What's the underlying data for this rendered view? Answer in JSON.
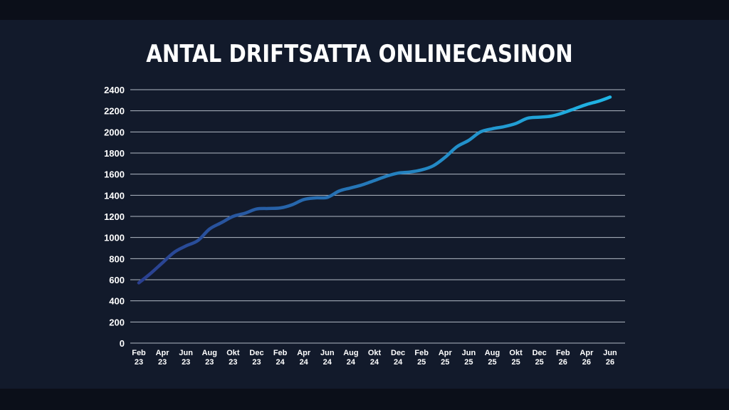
{
  "colors": {
    "background": "#121a2b",
    "gridline": "#cfd6e2",
    "line_start": "#2a3f8f",
    "line_end": "#1fb6e6"
  },
  "chart_data": {
    "type": "line",
    "title": "ANTAL DRIFTSATTA ONLINECASINON",
    "xlabel": "",
    "ylabel": "",
    "ylim": [
      0,
      2400
    ],
    "yticks": [
      0,
      200,
      400,
      600,
      800,
      1000,
      1200,
      1400,
      1600,
      1800,
      2000,
      2200,
      2400
    ],
    "grid": true,
    "legend": "none",
    "x_ticks": [
      [
        "Feb",
        "23"
      ],
      [
        "Apr",
        "23"
      ],
      [
        "Jun",
        "23"
      ],
      [
        "Aug",
        "23"
      ],
      [
        "Okt",
        "23"
      ],
      [
        "Dec",
        "23"
      ],
      [
        "Feb",
        "24"
      ],
      [
        "Apr",
        "24"
      ],
      [
        "Jun",
        "24"
      ],
      [
        "Aug",
        "24"
      ],
      [
        "Okt",
        "24"
      ],
      [
        "Dec",
        "24"
      ],
      [
        "Feb",
        "25"
      ],
      [
        "Apr",
        "25"
      ],
      [
        "Jun",
        "25"
      ],
      [
        "Aug",
        "25"
      ],
      [
        "Okt",
        "25"
      ],
      [
        "Dec",
        "25"
      ],
      [
        "Feb",
        "26"
      ],
      [
        "Apr",
        "26"
      ],
      [
        "Jun",
        "26"
      ]
    ],
    "x": [
      "Feb 23",
      "Mar 23",
      "Apr 23",
      "May 23",
      "Jun 23",
      "Jul 23",
      "Aug 23",
      "Sep 23",
      "Okt 23",
      "Nov 23",
      "Dec 23",
      "Jan 24",
      "Feb 24",
      "Mar 24",
      "Apr 24",
      "May 24",
      "Jun 24",
      "Jul 24",
      "Aug 24",
      "Sep 24",
      "Okt 24",
      "Nov 24",
      "Dec 24",
      "Jan 25",
      "Feb 25",
      "Mar 25",
      "Apr 25",
      "May 25",
      "Jun 25",
      "Jul 25",
      "Aug 25",
      "Sep 25",
      "Okt 25",
      "Nov 25",
      "Dec 25",
      "Jan 26",
      "Feb 26",
      "Mar 26",
      "Apr 26",
      "May 26",
      "Jun 26"
    ],
    "series": [
      {
        "values": [
          570,
          660,
          760,
          860,
          920,
          970,
          1080,
          1140,
          1200,
          1230,
          1270,
          1275,
          1280,
          1310,
          1360,
          1375,
          1380,
          1440,
          1470,
          1500,
          1540,
          1580,
          1610,
          1620,
          1640,
          1680,
          1760,
          1860,
          1920,
          2000,
          2030,
          2050,
          2080,
          2130,
          2140,
          2150,
          2180,
          2220,
          2260,
          2290,
          2330
        ]
      }
    ]
  }
}
